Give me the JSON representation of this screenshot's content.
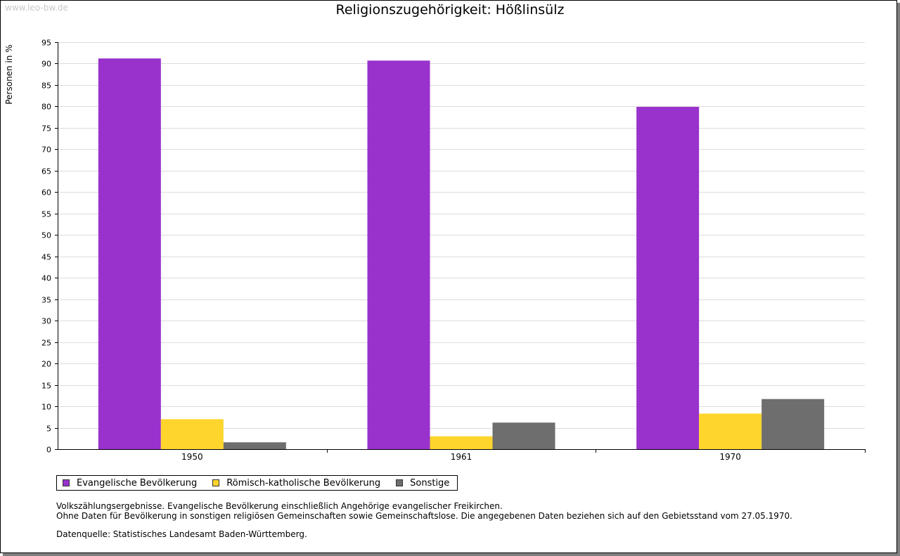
{
  "watermark": "www.leo-bw.de",
  "notes": {
    "line1": "Volkszählungsergebnisse. Evangelische Bevölkerung einschließlich Angehörige evangelischer Freikirchen.",
    "line2": "Ohne Daten für Bevölkerung in sonstigen religiösen Gemeinschaften sowie Gemeinschaftslose. Die angegebenen Daten beziehen sich auf den Gebietsstand vom 27.05.1970.",
    "source": "Datenquelle: Statistisches Landesamt Baden-Württemberg."
  },
  "chart_data": {
    "type": "bar",
    "title": "Religionszugehörigkeit: Hößlinsülz",
    "ylabel": "Personen in %",
    "xlabel": "",
    "ylim": [
      0,
      95
    ],
    "ytick_step": 5,
    "grid": true,
    "legend_position": "bottom-left",
    "categories": [
      "1950",
      "1961",
      "1970"
    ],
    "series": [
      {
        "name": "Evangelische Bevölkerung",
        "color": "#9932cc",
        "values": [
          91.2,
          90.7,
          79.9
        ]
      },
      {
        "name": "Römisch-katholische Bevölkerung",
        "color": "#fdd52c",
        "values": [
          7.0,
          3.0,
          8.3
        ]
      },
      {
        "name": "Sonstige",
        "color": "#6e6e6e",
        "values": [
          1.6,
          6.2,
          11.7
        ]
      }
    ]
  }
}
